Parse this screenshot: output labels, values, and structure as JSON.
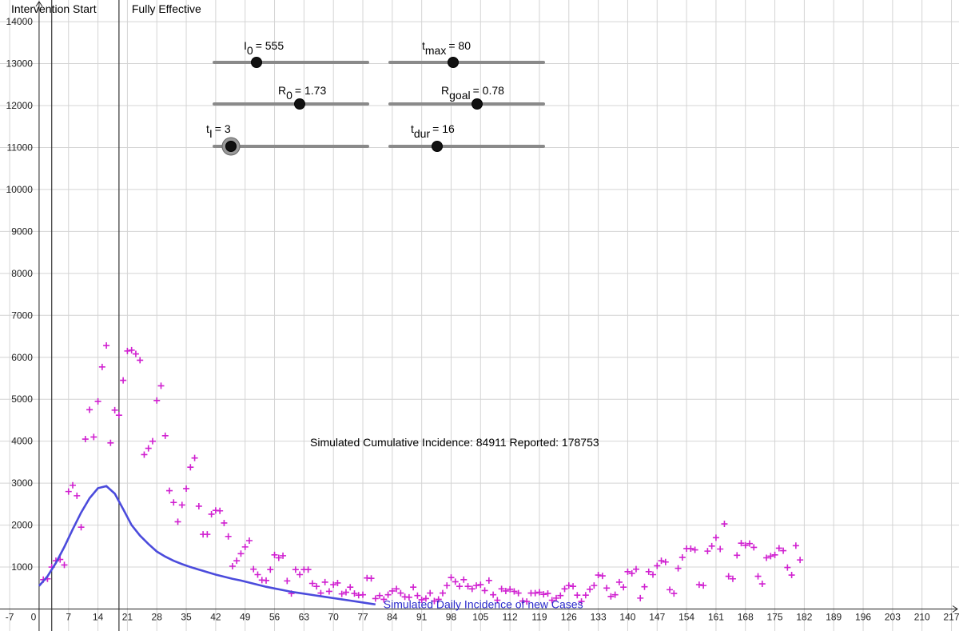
{
  "chart_data": {
    "type": "scatter",
    "xlim": [
      -9.3,
      218.8
    ],
    "ylim": [
      -524,
      14516
    ],
    "xticks": [
      -7,
      0,
      7,
      14,
      21,
      28,
      35,
      42,
      49,
      56,
      63,
      70,
      77,
      84,
      91,
      98,
      105,
      112,
      119,
      126,
      133,
      140,
      147,
      154,
      161,
      168,
      175,
      182,
      189,
      196,
      203,
      210,
      217
    ],
    "yticks": [
      1000,
      2000,
      3000,
      4000,
      5000,
      6000,
      7000,
      8000,
      9000,
      10000,
      11000,
      12000,
      13000,
      14000
    ],
    "grid": true,
    "vlines": [
      {
        "x": 3,
        "label": "Intervention Start"
      },
      {
        "x": 19,
        "label": "Fully Effective"
      }
    ],
    "annotation": "Simulated Cumulative Incidence: 84911 Reported: 178753",
    "series": [
      {
        "name": "Simulated Daily Incidence of new Cases",
        "kind": "line",
        "color": "#4b4bdc",
        "x": [
          0,
          2,
          4,
          6,
          8,
          10,
          12,
          14,
          16,
          18,
          20,
          22,
          24,
          26,
          28,
          30,
          32,
          34,
          36,
          38,
          40,
          42,
          44,
          46,
          48,
          50,
          52,
          54,
          56,
          58,
          60,
          62,
          64,
          66,
          68,
          70,
          72,
          74,
          76,
          78,
          80
        ],
        "values": [
          550,
          780,
          1100,
          1480,
          1900,
          2300,
          2640,
          2880,
          2930,
          2750,
          2380,
          2000,
          1750,
          1550,
          1370,
          1250,
          1150,
          1070,
          1000,
          940,
          880,
          820,
          770,
          720,
          680,
          630,
          580,
          530,
          490,
          450,
          410,
          380,
          350,
          320,
          290,
          260,
          230,
          200,
          170,
          140,
          110
        ]
      },
      {
        "kind": "points",
        "color": "#d020d0",
        "x": [
          1,
          2,
          3,
          4,
          5,
          6,
          7,
          8,
          9,
          10,
          11,
          12,
          13,
          14,
          15,
          16,
          17,
          18,
          19,
          20,
          21,
          22,
          23,
          24,
          25,
          26,
          27,
          28,
          29,
          30,
          31,
          32,
          33,
          34,
          35,
          36,
          37,
          38,
          39,
          40,
          41,
          42,
          43,
          44,
          45,
          46,
          47,
          48,
          49,
          50,
          51,
          52,
          53,
          54,
          55,
          56,
          57,
          58,
          59,
          60,
          61,
          62,
          63,
          64,
          65,
          66,
          67,
          68,
          69,
          70,
          71,
          72,
          73,
          74,
          75,
          76,
          77,
          78,
          79,
          80,
          81,
          82,
          83,
          84,
          85,
          86,
          87,
          88,
          89,
          90,
          91,
          92,
          93,
          94,
          95,
          96,
          97,
          98,
          99,
          100,
          101,
          102,
          103,
          104,
          105,
          106,
          107,
          108,
          109,
          110,
          111,
          112,
          113,
          114,
          115,
          116,
          117,
          118,
          119,
          120,
          121,
          122,
          123,
          124,
          125,
          126,
          127,
          128,
          129,
          130,
          131,
          132,
          133,
          134,
          135,
          136,
          137,
          138,
          139,
          140,
          141,
          142,
          143,
          144,
          145,
          146,
          147,
          148,
          149,
          150,
          151,
          152,
          153,
          154,
          155,
          156,
          157,
          158,
          159,
          160,
          161,
          162,
          163,
          164,
          165,
          166,
          167,
          168,
          169,
          170,
          171,
          172,
          173,
          174,
          175,
          176,
          177,
          178,
          179,
          180,
          181
        ],
        "values": [
          700,
          720,
          1000,
          1150,
          1180,
          1050,
          2800,
          2950,
          2700,
          1950,
          4050,
          4750,
          4100,
          4950,
          5770,
          6280,
          3960,
          4740,
          4620,
          5450,
          6150,
          6170,
          6080,
          5930,
          3680,
          3830,
          4000,
          4970,
          5320,
          4130,
          2820,
          2540,
          2080,
          2480,
          2870,
          3380,
          3600,
          2450,
          1780,
          1780,
          2260,
          2350,
          2340,
          2050,
          1730,
          1020,
          1150,
          1320,
          1480,
          1630,
          950,
          820,
          690,
          680,
          940,
          1290,
          1220,
          1270,
          670,
          370,
          940,
          820,
          940,
          940,
          610,
          540,
          380,
          640,
          420,
          580,
          620,
          360,
          400,
          520,
          370,
          330,
          340,
          740,
          730,
          250,
          320,
          230,
          340,
          430,
          480,
          380,
          290,
          280,
          520,
          320,
          220,
          250,
          380,
          190,
          230,
          380,
          560,
          750,
          650,
          540,
          700,
          540,
          480,
          560,
          580,
          440,
          680,
          340,
          210,
          480,
          430,
          470,
          420,
          380,
          190,
          180,
          380,
          380,
          400,
          350,
          370,
          210,
          260,
          320,
          480,
          560,
          540,
          330,
          180,
          330,
          470,
          560,
          810,
          790,
          500,
          300,
          340,
          640,
          520,
          890,
          850,
          950,
          260,
          530,
          890,
          820,
          1030,
          1150,
          1120,
          460,
          370,
          970,
          1230,
          1440,
          1440,
          1410,
          580,
          560,
          1380,
          1500,
          1700,
          1430,
          2030,
          780,
          720,
          1280,
          1570,
          1520,
          1560,
          1470,
          780,
          600,
          1220,
          1260,
          1290,
          1450,
          1390,
          990,
          810,
          1510,
          1170
        ]
      }
    ]
  },
  "sliders": [
    {
      "symbol": "I",
      "subscript": "0",
      "value": "= 555"
    },
    {
      "symbol": "t",
      "subscript": "max",
      "value": "= 80"
    },
    {
      "symbol": "R",
      "subscript": "0",
      "value": "= 1.73"
    },
    {
      "symbol": "R",
      "subscript": "goal",
      "value": "= 0.78"
    },
    {
      "symbol": "t",
      "subscript": "I",
      "value": "= 3"
    },
    {
      "symbol": "t",
      "subscript": "dur",
      "value": "= 16"
    }
  ]
}
